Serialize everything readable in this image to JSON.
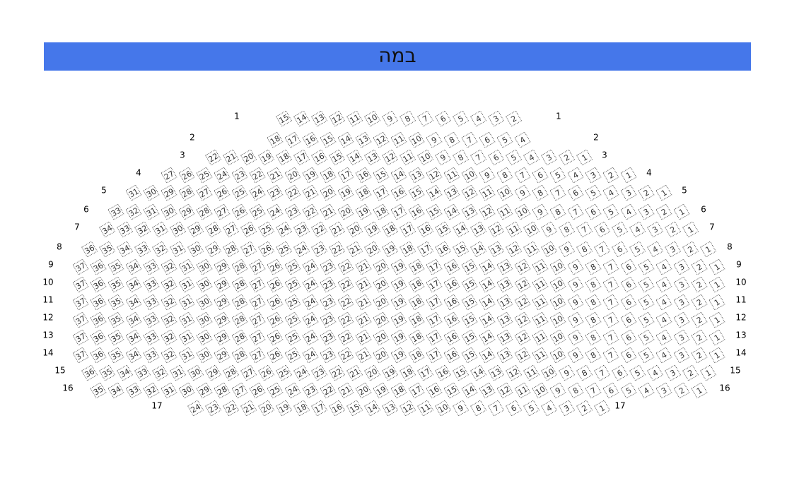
{
  "stage": {
    "title": "במה"
  },
  "rows": [
    {
      "label": "1",
      "seats": [
        15,
        14,
        13,
        12,
        11,
        10,
        9,
        8,
        7,
        6,
        5,
        4,
        3,
        2
      ]
    },
    {
      "label": "2",
      "seats": [
        18,
        17,
        16,
        15,
        14,
        13,
        12,
        11,
        10,
        9,
        8,
        7,
        6,
        5,
        4
      ]
    },
    {
      "label": "3",
      "seats": [
        22,
        21,
        20,
        19,
        18,
        17,
        16,
        15,
        14,
        13,
        12,
        11,
        10,
        9,
        8,
        7,
        6,
        5,
        4,
        3,
        2,
        1
      ]
    },
    {
      "label": "4",
      "seats": [
        27,
        26,
        25,
        24,
        23,
        22,
        21,
        20,
        19,
        18,
        17,
        16,
        15,
        14,
        13,
        12,
        11,
        10,
        9,
        8,
        7,
        6,
        5,
        4,
        3,
        2,
        1
      ]
    },
    {
      "label": "5",
      "seats": [
        31,
        30,
        29,
        28,
        27,
        26,
        25,
        24,
        23,
        22,
        21,
        20,
        19,
        18,
        17,
        16,
        15,
        14,
        13,
        12,
        11,
        10,
        9,
        8,
        7,
        6,
        5,
        4,
        3,
        2,
        1
      ]
    },
    {
      "label": "6",
      "seats": [
        33,
        32,
        31,
        30,
        29,
        28,
        27,
        26,
        25,
        24,
        23,
        22,
        21,
        20,
        19,
        18,
        17,
        16,
        15,
        14,
        13,
        12,
        11,
        10,
        9,
        8,
        7,
        6,
        5,
        4,
        3,
        2,
        1
      ]
    },
    {
      "label": "7",
      "seats": [
        34,
        33,
        32,
        31,
        30,
        29,
        28,
        27,
        26,
        25,
        24,
        23,
        22,
        21,
        20,
        19,
        18,
        17,
        16,
        15,
        14,
        13,
        12,
        11,
        10,
        9,
        8,
        7,
        6,
        5,
        4,
        3,
        2,
        1
      ]
    },
    {
      "label": "8",
      "seats": [
        36,
        35,
        34,
        33,
        32,
        31,
        30,
        29,
        28,
        27,
        26,
        25,
        24,
        23,
        22,
        21,
        20,
        19,
        18,
        17,
        16,
        15,
        14,
        13,
        12,
        11,
        10,
        9,
        8,
        7,
        6,
        5,
        4,
        3,
        2,
        1
      ]
    },
    {
      "label": "9",
      "seats": [
        37,
        36,
        35,
        34,
        33,
        32,
        31,
        30,
        29,
        28,
        27,
        26,
        25,
        24,
        23,
        22,
        21,
        20,
        19,
        18,
        17,
        16,
        15,
        14,
        13,
        12,
        11,
        10,
        9,
        8,
        7,
        6,
        5,
        4,
        3,
        2,
        1
      ]
    },
    {
      "label": "10",
      "seats": [
        37,
        36,
        35,
        34,
        33,
        32,
        31,
        30,
        29,
        28,
        27,
        26,
        25,
        24,
        23,
        22,
        21,
        20,
        19,
        18,
        17,
        16,
        15,
        14,
        13,
        12,
        11,
        10,
        9,
        8,
        7,
        6,
        5,
        4,
        3,
        2,
        1
      ]
    },
    {
      "label": "11",
      "seats": [
        37,
        36,
        35,
        34,
        33,
        32,
        31,
        30,
        29,
        28,
        27,
        26,
        25,
        24,
        23,
        22,
        21,
        20,
        19,
        18,
        17,
        16,
        15,
        14,
        13,
        12,
        11,
        10,
        9,
        8,
        7,
        6,
        5,
        4,
        3,
        2,
        1
      ]
    },
    {
      "label": "12",
      "seats": [
        37,
        36,
        35,
        34,
        33,
        32,
        31,
        30,
        29,
        28,
        27,
        26,
        25,
        24,
        23,
        22,
        21,
        20,
        19,
        18,
        17,
        16,
        15,
        14,
        13,
        12,
        11,
        10,
        9,
        8,
        7,
        6,
        5,
        4,
        3,
        2,
        1
      ]
    },
    {
      "label": "13",
      "seats": [
        37,
        36,
        35,
        34,
        33,
        32,
        31,
        30,
        29,
        28,
        27,
        26,
        25,
        24,
        23,
        22,
        21,
        20,
        19,
        18,
        17,
        16,
        15,
        14,
        13,
        12,
        11,
        10,
        9,
        8,
        7,
        6,
        5,
        4,
        3,
        2,
        1
      ]
    },
    {
      "label": "14",
      "seats": [
        37,
        36,
        35,
        34,
        33,
        32,
        31,
        30,
        29,
        28,
        27,
        26,
        25,
        24,
        23,
        22,
        21,
        20,
        19,
        18,
        17,
        16,
        15,
        14,
        13,
        12,
        11,
        10,
        9,
        8,
        7,
        6,
        5,
        4,
        3,
        2,
        1
      ]
    },
    {
      "label": "15",
      "seats": [
        36,
        35,
        34,
        33,
        32,
        31,
        30,
        29,
        28,
        27,
        26,
        25,
        24,
        23,
        22,
        21,
        20,
        19,
        18,
        17,
        16,
        15,
        14,
        13,
        12,
        11,
        10,
        9,
        8,
        7,
        6,
        5,
        4,
        3,
        2,
        1
      ]
    },
    {
      "label": "16",
      "seats": [
        35,
        34,
        33,
        32,
        31,
        30,
        29,
        28,
        27,
        26,
        25,
        24,
        23,
        22,
        21,
        20,
        19,
        18,
        17,
        16,
        15,
        14,
        13,
        12,
        11,
        10,
        9,
        8,
        7,
        6,
        5,
        4,
        3,
        2,
        1
      ]
    },
    {
      "label": "17",
      "seats": [
        24,
        23,
        22,
        21,
        20,
        19,
        18,
        17,
        16,
        15,
        14,
        13,
        12,
        11,
        10,
        9,
        8,
        7,
        6,
        5,
        4,
        3,
        2,
        1
      ]
    }
  ]
}
